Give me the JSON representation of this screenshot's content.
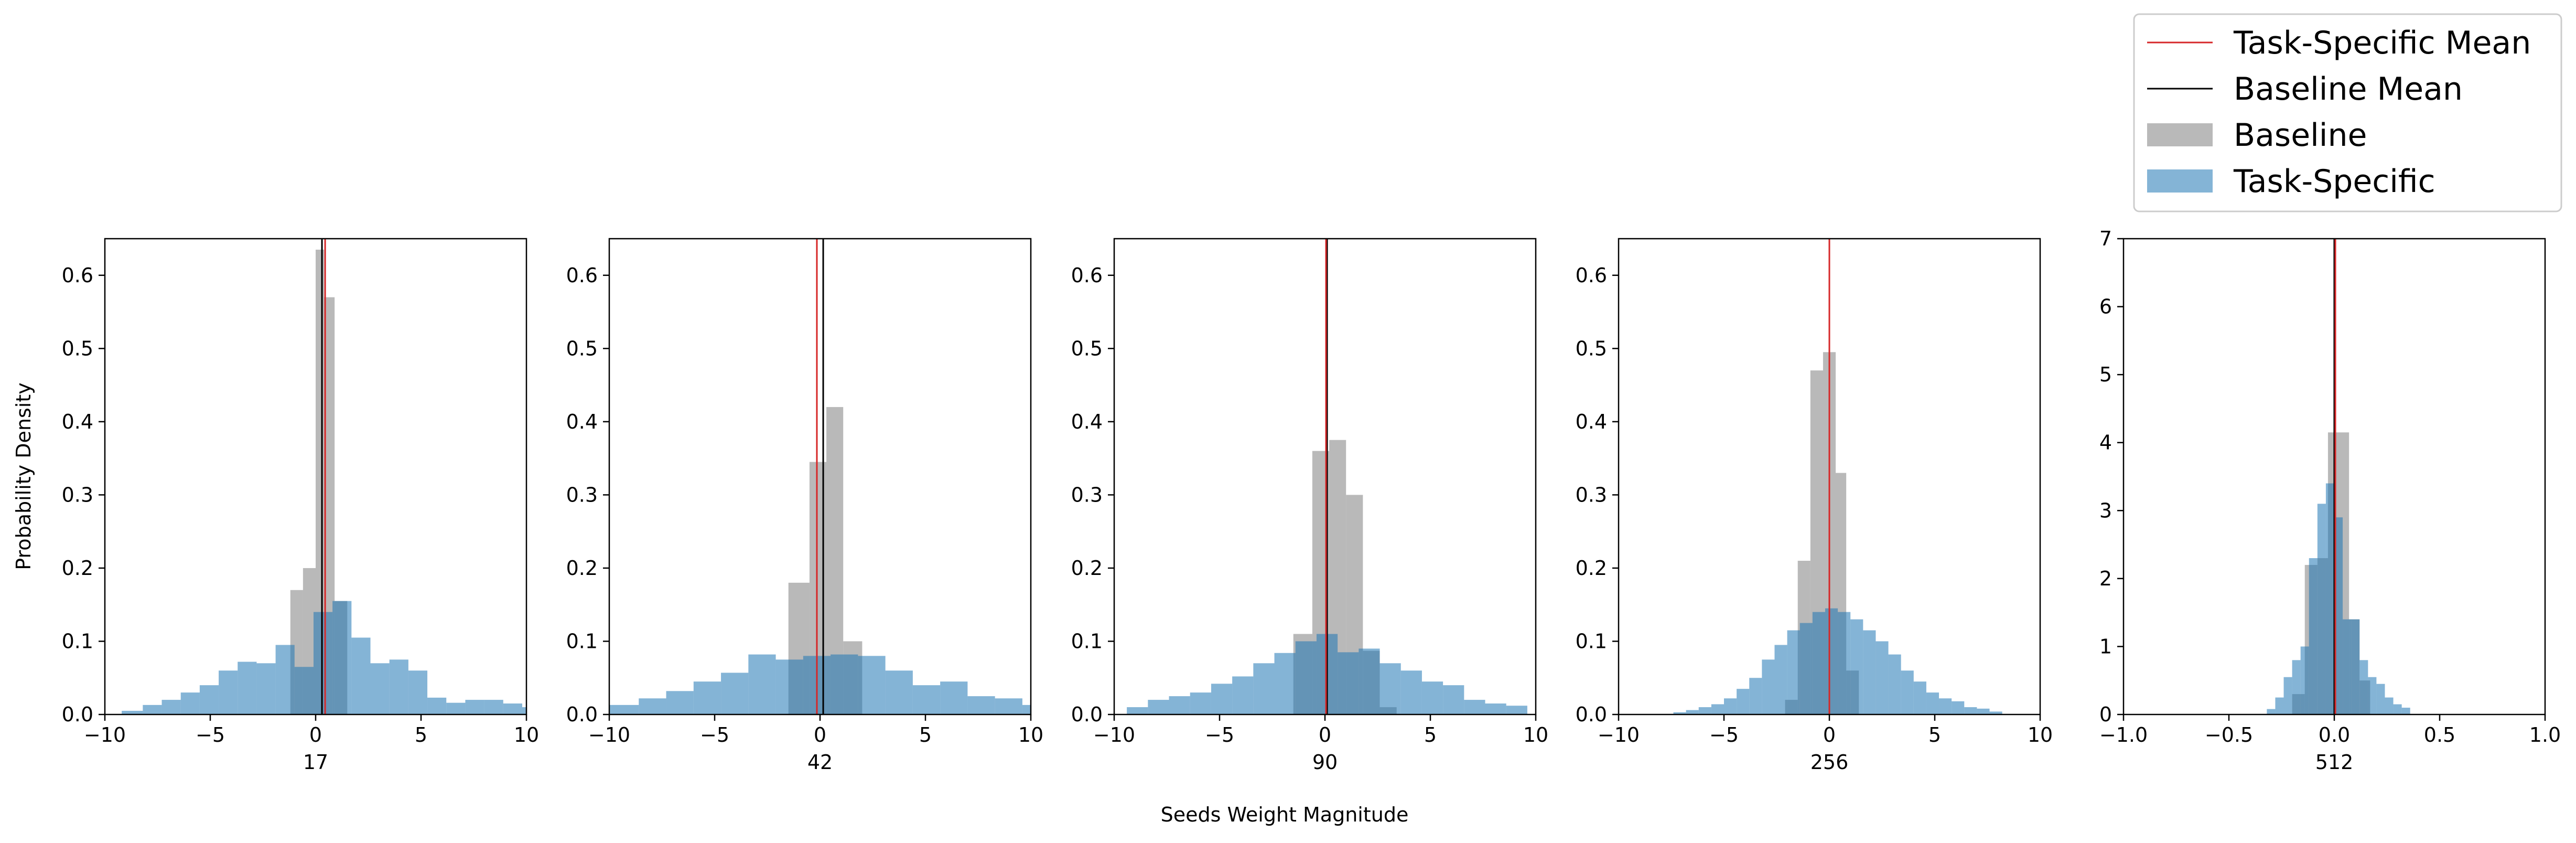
{
  "figure": {
    "ylabel": "Probability Density",
    "supxlabel": "Seeds Weight Magnitude"
  },
  "legend": {
    "placement": "upper-right",
    "entries": [
      {
        "label": "Task-Specific Mean",
        "kind": "line",
        "color": "#d62728"
      },
      {
        "label": "Baseline Mean",
        "kind": "line",
        "color": "#000000"
      },
      {
        "label": "Baseline",
        "kind": "patch",
        "color": "#7f7f7f"
      },
      {
        "label": "Task-Specific",
        "kind": "patch",
        "color": "#1f77b4"
      }
    ]
  },
  "colors": {
    "baseline_fill": "#7f7f7f",
    "task_fill": "#1f77b4",
    "baseline_mean": "#000000",
    "task_mean": "#d62728",
    "overlap_note": "semi-transparent overlapping fills"
  },
  "chart_data": [
    {
      "type": "histogram",
      "xlabel": "17",
      "xlim": [
        -10,
        10
      ],
      "ylim": [
        0,
        0.65
      ],
      "xticks": [
        "−10",
        "−5",
        "0",
        "5",
        "10"
      ],
      "yticks": [
        "0.0",
        "0.1",
        "0.2",
        "0.3",
        "0.4",
        "0.5",
        "0.6"
      ],
      "series": [
        {
          "name": "Baseline",
          "color": "#7f7f7f",
          "bins": [
            [
              -1.2,
              -0.6,
              0.17
            ],
            [
              -0.6,
              0.0,
              0.2
            ],
            [
              0.0,
              0.4,
              0.635
            ],
            [
              0.4,
              0.9,
              0.57
            ],
            [
              0.9,
              1.5,
              0.155
            ]
          ]
        },
        {
          "name": "Task-Specific",
          "color": "#1f77b4",
          "bins": [
            [
              -9.2,
              -8.2,
              0.005
            ],
            [
              -8.2,
              -7.3,
              0.013
            ],
            [
              -7.3,
              -6.4,
              0.02
            ],
            [
              -6.4,
              -5.5,
              0.03
            ],
            [
              -5.5,
              -4.6,
              0.04
            ],
            [
              -4.6,
              -3.7,
              0.06
            ],
            [
              -3.7,
              -2.8,
              0.072
            ],
            [
              -2.8,
              -1.9,
              0.07
            ],
            [
              -1.9,
              -1.0,
              0.095
            ],
            [
              -1.0,
              -0.1,
              0.065
            ],
            [
              -0.1,
              0.8,
              0.14
            ],
            [
              0.8,
              1.7,
              0.155
            ],
            [
              1.7,
              2.6,
              0.105
            ],
            [
              2.6,
              3.5,
              0.07
            ],
            [
              3.5,
              4.4,
              0.075
            ],
            [
              4.4,
              5.3,
              0.06
            ],
            [
              5.3,
              6.2,
              0.023
            ],
            [
              6.2,
              7.1,
              0.016
            ],
            [
              7.1,
              8.0,
              0.02
            ],
            [
              8.0,
              8.9,
              0.02
            ],
            [
              8.9,
              9.8,
              0.015
            ],
            [
              9.8,
              10.0,
              0.01
            ]
          ]
        }
      ],
      "means": {
        "Baseline Mean": 0.3,
        "Task-Specific Mean": 0.45
      }
    },
    {
      "type": "histogram",
      "xlabel": "42",
      "xlim": [
        -10,
        10
      ],
      "ylim": [
        0,
        0.65
      ],
      "xticks": [
        "−10",
        "−5",
        "0",
        "5",
        "10"
      ],
      "yticks": [
        "0.0",
        "0.1",
        "0.2",
        "0.3",
        "0.4",
        "0.5",
        "0.6"
      ],
      "series": [
        {
          "name": "Baseline",
          "color": "#7f7f7f",
          "bins": [
            [
              -1.5,
              -0.5,
              0.18
            ],
            [
              -0.5,
              0.3,
              0.345
            ],
            [
              0.3,
              1.1,
              0.42
            ],
            [
              1.1,
              2.0,
              0.1
            ]
          ]
        },
        {
          "name": "Task-Specific",
          "color": "#1f77b4",
          "bins": [
            [
              -10.0,
              -8.6,
              0.013
            ],
            [
              -8.6,
              -7.3,
              0.022
            ],
            [
              -7.3,
              -6.0,
              0.032
            ],
            [
              -6.0,
              -4.7,
              0.045
            ],
            [
              -4.7,
              -3.4,
              0.057
            ],
            [
              -3.4,
              -2.1,
              0.082
            ],
            [
              -2.1,
              -0.8,
              0.075
            ],
            [
              -0.8,
              0.5,
              0.08
            ],
            [
              0.5,
              1.8,
              0.082
            ],
            [
              1.8,
              3.1,
              0.08
            ],
            [
              3.1,
              4.4,
              0.06
            ],
            [
              4.4,
              5.7,
              0.04
            ],
            [
              5.7,
              7.0,
              0.045
            ],
            [
              7.0,
              8.3,
              0.025
            ],
            [
              8.3,
              9.6,
              0.022
            ],
            [
              9.6,
              10.0,
              0.013
            ]
          ]
        }
      ],
      "means": {
        "Baseline Mean": 0.15,
        "Task-Specific Mean": -0.15
      }
    },
    {
      "type": "histogram",
      "xlabel": "90",
      "xlim": [
        -10,
        10
      ],
      "ylim": [
        0,
        0.65
      ],
      "xticks": [
        "−10",
        "−5",
        "0",
        "5",
        "10"
      ],
      "yticks": [
        "0.0",
        "0.1",
        "0.2",
        "0.3",
        "0.4",
        "0.5",
        "0.6"
      ],
      "series": [
        {
          "name": "Baseline",
          "color": "#7f7f7f",
          "bins": [
            [
              -1.5,
              -0.6,
              0.11
            ],
            [
              -0.6,
              0.2,
              0.36
            ],
            [
              0.2,
              1.0,
              0.375
            ],
            [
              1.0,
              1.8,
              0.3
            ],
            [
              1.8,
              2.6,
              0.087
            ],
            [
              2.6,
              3.4,
              0.01
            ]
          ]
        },
        {
          "name": "Task-Specific",
          "color": "#1f77b4",
          "bins": [
            [
              -9.4,
              -8.4,
              0.01
            ],
            [
              -8.4,
              -7.4,
              0.02
            ],
            [
              -7.4,
              -6.4,
              0.025
            ],
            [
              -6.4,
              -5.4,
              0.03
            ],
            [
              -5.4,
              -4.4,
              0.042
            ],
            [
              -4.4,
              -3.4,
              0.052
            ],
            [
              -3.4,
              -2.4,
              0.07
            ],
            [
              -2.4,
              -1.4,
              0.084
            ],
            [
              -1.4,
              -0.4,
              0.1
            ],
            [
              -0.4,
              0.6,
              0.11
            ],
            [
              0.6,
              1.6,
              0.085
            ],
            [
              1.6,
              2.6,
              0.09
            ],
            [
              2.6,
              3.6,
              0.07
            ],
            [
              3.6,
              4.6,
              0.06
            ],
            [
              4.6,
              5.6,
              0.045
            ],
            [
              5.6,
              6.6,
              0.04
            ],
            [
              6.6,
              7.6,
              0.02
            ],
            [
              7.6,
              8.6,
              0.015
            ],
            [
              8.6,
              9.6,
              0.012
            ]
          ]
        }
      ],
      "means": {
        "Baseline Mean": 0.1,
        "Task-Specific Mean": 0.05
      }
    },
    {
      "type": "histogram",
      "xlabel": "256",
      "xlim": [
        -10,
        10
      ],
      "ylim": [
        0,
        0.65
      ],
      "xticks": [
        "−10",
        "−5",
        "0",
        "5",
        "10"
      ],
      "yticks": [
        "0.0",
        "0.1",
        "0.2",
        "0.3",
        "0.4",
        "0.5",
        "0.6"
      ],
      "series": [
        {
          "name": "Baseline",
          "color": "#7f7f7f",
          "bins": [
            [
              -2.1,
              -1.5,
              0.02
            ],
            [
              -1.5,
              -0.9,
              0.21
            ],
            [
              -0.9,
              -0.3,
              0.47
            ],
            [
              -0.3,
              0.3,
              0.495
            ],
            [
              0.3,
              0.8,
              0.33
            ],
            [
              0.8,
              1.4,
              0.06
            ]
          ]
        },
        {
          "name": "Task-Specific",
          "color": "#1f77b4",
          "bins": [
            [
              -7.4,
              -6.8,
              0.003
            ],
            [
              -6.8,
              -6.2,
              0.006
            ],
            [
              -6.2,
              -5.6,
              0.01
            ],
            [
              -5.6,
              -5.0,
              0.014
            ],
            [
              -5.0,
              -4.4,
              0.022
            ],
            [
              -4.4,
              -3.8,
              0.035
            ],
            [
              -3.8,
              -3.2,
              0.05
            ],
            [
              -3.2,
              -2.6,
              0.075
            ],
            [
              -2.6,
              -2.0,
              0.095
            ],
            [
              -2.0,
              -1.4,
              0.115
            ],
            [
              -1.4,
              -0.8,
              0.125
            ],
            [
              -0.8,
              -0.2,
              0.14
            ],
            [
              -0.2,
              0.4,
              0.145
            ],
            [
              0.4,
              1.0,
              0.14
            ],
            [
              1.0,
              1.6,
              0.13
            ],
            [
              1.6,
              2.2,
              0.115
            ],
            [
              2.2,
              2.8,
              0.1
            ],
            [
              2.8,
              3.4,
              0.082
            ],
            [
              3.4,
              4.0,
              0.06
            ],
            [
              4.0,
              4.6,
              0.045
            ],
            [
              4.6,
              5.2,
              0.03
            ],
            [
              5.2,
              5.8,
              0.022
            ],
            [
              5.8,
              6.4,
              0.018
            ],
            [
              6.4,
              7.0,
              0.01
            ],
            [
              7.0,
              7.6,
              0.008
            ],
            [
              7.6,
              8.2,
              0.004
            ]
          ]
        }
      ],
      "means": {
        "Baseline Mean": 0.0,
        "Task-Specific Mean": 0.0
      }
    },
    {
      "type": "histogram",
      "xlabel": "512",
      "xlim": [
        -1.0,
        1.0
      ],
      "ylim": [
        0,
        7
      ],
      "xticks": [
        "−1.0",
        "−0.5",
        "0.0",
        "0.5",
        "1.0"
      ],
      "yticks": [
        "0",
        "1",
        "2",
        "3",
        "4",
        "5",
        "6",
        "7"
      ],
      "series": [
        {
          "name": "Baseline",
          "color": "#7f7f7f",
          "bins": [
            [
              -0.2,
              -0.14,
              0.3
            ],
            [
              -0.14,
              -0.08,
              2.2
            ],
            [
              -0.08,
              -0.03,
              2.3
            ],
            [
              -0.03,
              0.02,
              4.15
            ],
            [
              0.02,
              0.07,
              4.15
            ],
            [
              0.07,
              0.12,
              1.4
            ],
            [
              0.12,
              0.17,
              0.5
            ]
          ]
        },
        {
          "name": "Task-Specific",
          "color": "#1f77b4",
          "bins": [
            [
              -0.32,
              -0.28,
              0.08
            ],
            [
              -0.28,
              -0.24,
              0.25
            ],
            [
              -0.24,
              -0.2,
              0.55
            ],
            [
              -0.2,
              -0.16,
              0.8
            ],
            [
              -0.16,
              -0.12,
              1.0
            ],
            [
              -0.12,
              -0.08,
              2.3
            ],
            [
              -0.08,
              -0.04,
              3.1
            ],
            [
              -0.04,
              0.0,
              3.4
            ],
            [
              0.0,
              0.04,
              2.9
            ],
            [
              0.04,
              0.08,
              1.4
            ],
            [
              0.08,
              0.12,
              1.4
            ],
            [
              0.12,
              0.16,
              0.8
            ],
            [
              0.16,
              0.2,
              0.55
            ],
            [
              0.2,
              0.24,
              0.45
            ],
            [
              0.24,
              0.28,
              0.25
            ],
            [
              0.28,
              0.32,
              0.15
            ],
            [
              0.32,
              0.36,
              0.1
            ]
          ]
        }
      ],
      "means": {
        "Baseline Mean": 0.0,
        "Task-Specific Mean": 0.005
      }
    }
  ]
}
